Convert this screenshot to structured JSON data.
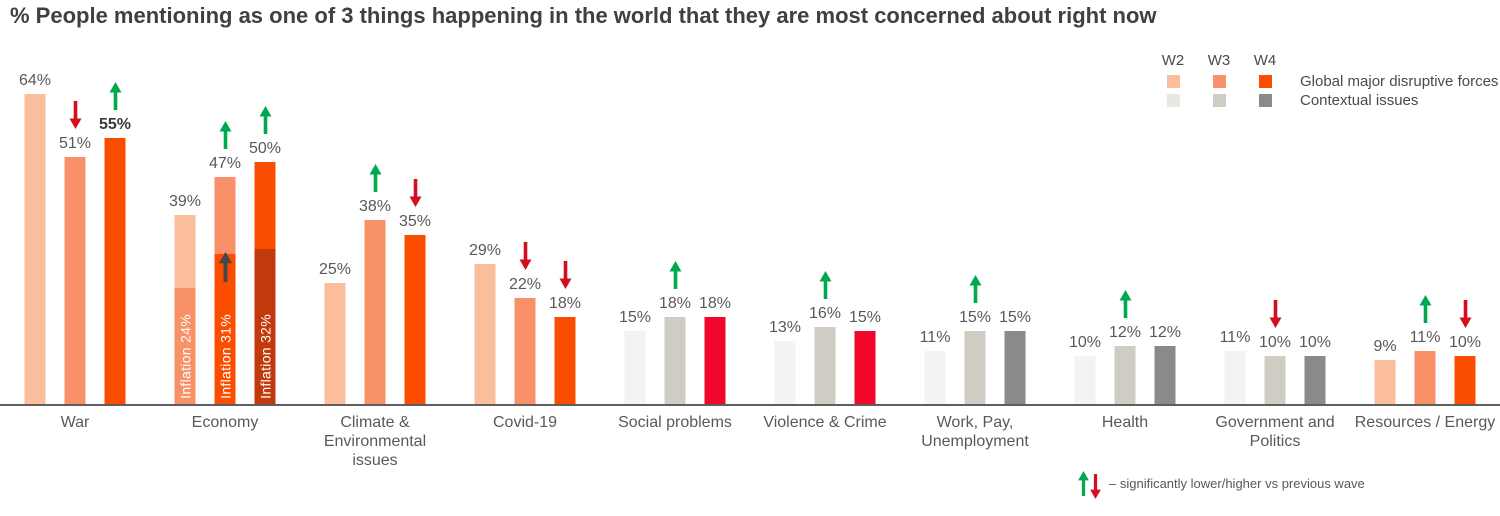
{
  "title": "% People mentioning as one of 3 things happening in the world that they are most concerned about right now",
  "legend": {
    "wave_labels": [
      "W2",
      "W3",
      "W4"
    ],
    "rows": [
      {
        "label": "Global major disruptive forces",
        "colors": [
          "#FBBE9C",
          "#F99168",
          "#FB4D00"
        ]
      },
      {
        "label": "Contextual issues",
        "colors": [
          "#E8E7E1",
          "#CFCDC3",
          "#8A8A8A"
        ]
      }
    ]
  },
  "footnote": {
    "text": "– significantly lower/higher vs previous wave"
  },
  "colors": {
    "palettes": {
      "disruptive": [
        "#FBBE9C",
        "#F99168",
        "#FB4D00"
      ],
      "contextual": [
        "#F4F3F2",
        "#CFCDC3",
        "#8A8A8A"
      ],
      "contextual_red_w4": [
        "#F4F3F2",
        "#CFCDC3",
        "#F2072C"
      ]
    },
    "inflation_segments": [
      "#F99168",
      "#FB4D00",
      "#C23A0B"
    ],
    "sig_up_arrow": "#00A84E",
    "sig_down_arrow": "#D20F1E",
    "inner_arrow": "#474747",
    "axis_line": "#5E5E5E",
    "value_label": "#595959",
    "title_text": "#404040"
  },
  "chart_data": {
    "type": "bar",
    "unit": "%",
    "series_names": [
      "W2",
      "W3",
      "W4"
    ],
    "ylim": [
      0,
      70
    ],
    "grid": false,
    "legend_position": "top-right",
    "groups": [
      {
        "category": "War",
        "values": [
          64,
          51,
          55
        ],
        "palette": "disruptive",
        "arrows": [
          null,
          "down",
          "up"
        ],
        "bold": [
          false,
          false,
          true
        ]
      },
      {
        "category": "Economy",
        "values": [
          39,
          47,
          50
        ],
        "palette": "disruptive",
        "arrows": [
          null,
          "up",
          "up"
        ],
        "inflation_values": [
          24,
          31,
          32
        ],
        "inflation_label_prefix": "Inflation",
        "inflation_arrow_wave_index": 1
      },
      {
        "category": "Climate &\nEnvironmental\nissues",
        "values": [
          25,
          38,
          35
        ],
        "palette": "disruptive",
        "arrows": [
          null,
          "up",
          "down"
        ]
      },
      {
        "category": "Covid-19",
        "values": [
          29,
          22,
          18
        ],
        "palette": "disruptive",
        "arrows": [
          null,
          "down",
          "down"
        ]
      },
      {
        "category": "Social problems",
        "values": [
          15,
          18,
          18
        ],
        "palette": "contextual_red_w4",
        "arrows": [
          null,
          "up",
          null
        ]
      },
      {
        "category": "Violence & Crime",
        "values": [
          13,
          16,
          15
        ],
        "palette": "contextual_red_w4",
        "arrows": [
          null,
          "up",
          null
        ]
      },
      {
        "category": "Work, Pay,\nUnemployment",
        "values": [
          11,
          15,
          15
        ],
        "palette": "contextual",
        "arrows": [
          null,
          "up",
          null
        ]
      },
      {
        "category": "Health",
        "values": [
          10,
          12,
          12
        ],
        "palette": "contextual",
        "arrows": [
          null,
          "up",
          null
        ]
      },
      {
        "category": "Government and\nPolitics",
        "values": [
          11,
          10,
          10
        ],
        "palette": "contextual",
        "arrows": [
          null,
          "down",
          null
        ]
      },
      {
        "category": "Resources / Energy",
        "values": [
          9,
          11,
          10
        ],
        "palette": "disruptive",
        "arrows": [
          null,
          "up",
          "down"
        ]
      }
    ]
  }
}
